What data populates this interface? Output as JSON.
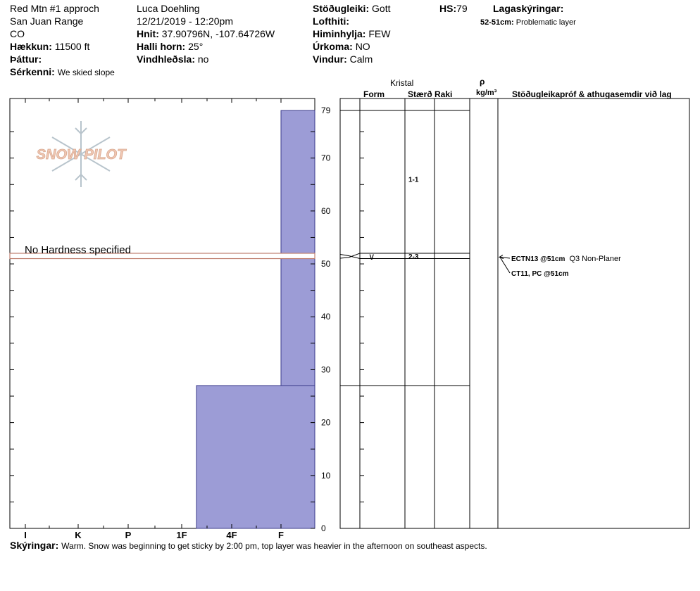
{
  "header": {
    "col1": {
      "location": "Red Mtn #1 approch",
      "range": "San Juan Range",
      "state": "CO",
      "elevation_label": "Hækkun:",
      "elevation_value": "11500 ft",
      "aspect_label": "Þáttur:",
      "aspect_value": "",
      "features_label": "Sérkenni:",
      "features_value": "We skied slope"
    },
    "col2": {
      "observer": "Luca Doehling",
      "datetime": "12/21/2019 - 12:20pm",
      "coords_label": "Hnit:",
      "coords_value": "37.90796N, -107.64726W",
      "slope_label": "Halli horn:",
      "slope_value": "25°",
      "windload_label": "Vindhleðsla:",
      "windload_value": "no"
    },
    "col3": {
      "stability_label": "Stöðugleiki:",
      "stability_value": "Gott",
      "airtemp_label": "Lofthiti:",
      "airtemp_value": "",
      "sky_label": "Himinhylja:",
      "sky_value": "FEW",
      "precip_label": "Úrkoma:",
      "precip_value": "NO",
      "wind_label": "Vindur:",
      "wind_value": "Calm"
    },
    "hs_label": "HS:",
    "hs_value": "79",
    "layer_notes_label": "Lagaskýringar:",
    "layer_note_range": "52-51cm:",
    "layer_note_text": "Problematic layer"
  },
  "columns": {
    "kristal": "Kristal",
    "form": "Form",
    "size": "Stærð",
    "moisture": "Raki",
    "rho": "ρ",
    "density_unit": "kg/m³",
    "tests": "Stöðugleikapróf & athugasemdir við lag"
  },
  "logo_text": "SNOW PILOT",
  "no_hardness_text": "No Hardness specified",
  "notes_label": "Skýringar:",
  "notes_text": "Warm. Snow was beginning to get sticky by 2:00 pm, top layer was heavier in the afternoon on southeast aspects.",
  "colors": {
    "hardness_fill": "#9c9cd6",
    "hardness_stroke": "#3a3a8a",
    "problem_layer": "#c08070",
    "logo": "#f0c8b4"
  },
  "chart_data": {
    "type": "bar",
    "ylim": [
      0,
      79
    ],
    "ytick_labels": [
      "0",
      "10",
      "20",
      "30",
      "40",
      "50",
      "60",
      "70",
      "79"
    ],
    "hardness_scale": [
      "I",
      "K",
      "P",
      "1F",
      "4F",
      "F"
    ],
    "hardness_layers": [
      {
        "bottom": 0,
        "top": 27,
        "hardness": "4F"
      },
      {
        "bottom": 27,
        "top": 79,
        "hardness": "F"
      }
    ],
    "problem_layer": {
      "bottom": 51,
      "top": 52
    },
    "layer_boundaries": [
      79,
      52,
      51,
      27
    ],
    "grain_sizes": [
      {
        "depth": 66,
        "label": "1-1"
      },
      {
        "depth": 51.5,
        "label": "2-3",
        "form_symbol": "∨"
      }
    ],
    "stability_tests": [
      {
        "test": "ECTN13 @51cm",
        "comment": "Q3 Non-Planer"
      },
      {
        "test": "CT11, PC @51cm",
        "comment": ""
      }
    ]
  }
}
